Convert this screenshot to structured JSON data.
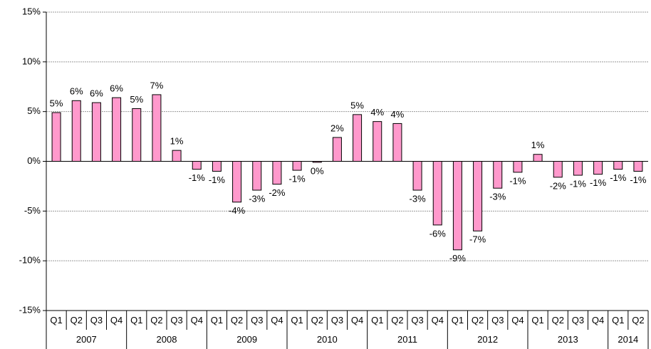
{
  "chart_data": {
    "type": "bar",
    "categories": [
      "Q1",
      "Q2",
      "Q3",
      "Q4",
      "Q1",
      "Q2",
      "Q3",
      "Q4",
      "Q1",
      "Q2",
      "Q3",
      "Q4",
      "Q1",
      "Q2",
      "Q3",
      "Q4",
      "Q1",
      "Q2",
      "Q3",
      "Q4",
      "Q1",
      "Q2",
      "Q3",
      "Q4",
      "Q1",
      "Q2",
      "Q3",
      "Q4",
      "Q1",
      "Q2"
    ],
    "groups": [
      {
        "name": "2007",
        "size": 4
      },
      {
        "name": "2008",
        "size": 4
      },
      {
        "name": "2009",
        "size": 4
      },
      {
        "name": "2010",
        "size": 4
      },
      {
        "name": "2011",
        "size": 4
      },
      {
        "name": "2012",
        "size": 4
      },
      {
        "name": "2013",
        "size": 4
      },
      {
        "name": "2014",
        "size": 2
      }
    ],
    "values": [
      4.9,
      6.1,
      5.9,
      6.4,
      5.3,
      6.7,
      1.1,
      -0.8,
      -1.0,
      -4.1,
      -2.9,
      -2.3,
      -0.9,
      -0.1,
      2.4,
      4.7,
      4.0,
      3.8,
      -2.9,
      -6.4,
      -8.9,
      -7.0,
      -2.7,
      -1.1,
      0.7,
      -1.6,
      -1.4,
      -1.3,
      -0.8,
      -1.0
    ],
    "value_labels": [
      "5%",
      "6%",
      "6%",
      "6%",
      "5%",
      "7%",
      "1%",
      "-1%",
      "-1%",
      "-4%",
      "-3%",
      "-2%",
      "-1%",
      "0%",
      "2%",
      "5%",
      "4%",
      "4%",
      "-3%",
      "-6%",
      "-9%",
      "-7%",
      "-3%",
      "-1%",
      "1%",
      "-2%",
      "-1%",
      "-1%",
      "-1%",
      "-1%"
    ],
    "color": "#ff99cc",
    "ylim": [
      -15,
      15
    ],
    "yticks": [
      {
        "value": -15,
        "label": "-15%"
      },
      {
        "value": -10,
        "label": "-10%"
      },
      {
        "value": -5,
        "label": "-5%"
      },
      {
        "value": 0,
        "label": "0%"
      },
      {
        "value": 5,
        "label": "5%"
      },
      {
        "value": 10,
        "label": "10%"
      },
      {
        "value": 15,
        "label": "15%"
      }
    ],
    "grid": true
  }
}
